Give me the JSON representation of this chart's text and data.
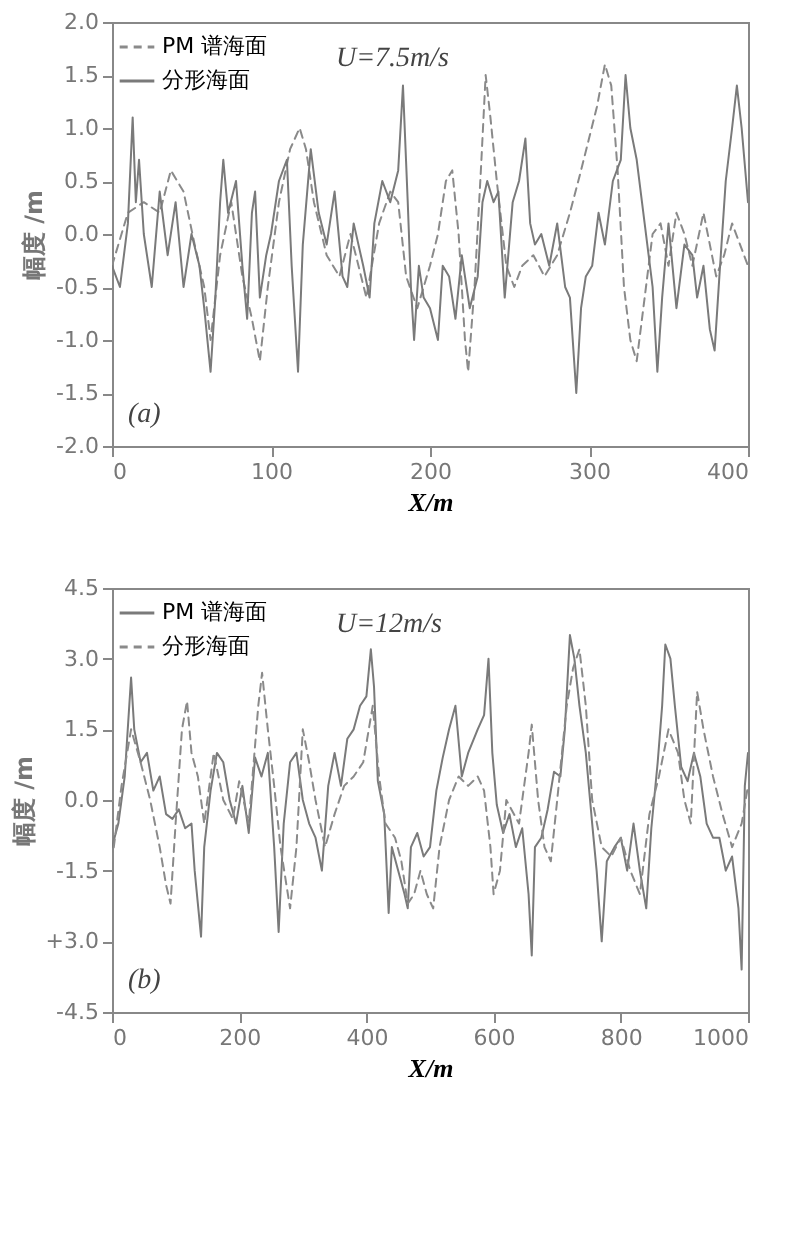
{
  "chart_data": [
    {
      "type": "line",
      "xlabel": "X/m",
      "ylabel": "幅度 /m",
      "annotations": [
        "U=7.5m/s",
        "(a)"
      ],
      "legend": "top left",
      "grid": false,
      "marker": "none",
      "xlim": [
        0,
        400
      ],
      "xticks": [
        0,
        100,
        200,
        300,
        400
      ],
      "ylim": [
        -2,
        2
      ],
      "yticks": [
        {
          "value": -2,
          "label": "-2.0"
        },
        {
          "value": -1.5,
          "label": "-1.5"
        },
        {
          "value": -1,
          "label": "-1.0"
        },
        {
          "value": -0.5,
          "label": "-0.5"
        },
        {
          "value": 0,
          "label": "0.0"
        },
        {
          "value": 0.5,
          "label": "0.5"
        },
        {
          "value": 1,
          "label": "1.0"
        },
        {
          "value": 1.5,
          "label": "1.5"
        },
        {
          "value": 2,
          "label": "2.0"
        }
      ],
      "series": [
        {
          "name": "PM 谱海面",
          "color": "#8a8a8a",
          "line_style": "dashed",
          "x": [
            0,
            10,
            20,
            30,
            37,
            45,
            52,
            58,
            62,
            68,
            75,
            82,
            88,
            93,
            98,
            105,
            112,
            118,
            122,
            127,
            135,
            143,
            150,
            160,
            168,
            175,
            180,
            185,
            192,
            200,
            205,
            210,
            214,
            218,
            222,
            224,
            228,
            232,
            235,
            238,
            242,
            248,
            253,
            258,
            265,
            272,
            280,
            288,
            295,
            300,
            305,
            310,
            314,
            318,
            322,
            326,
            330,
            335,
            340,
            345,
            350,
            355,
            360,
            365,
            372,
            380,
            385,
            390,
            395,
            400
          ],
          "values": [
            -0.3,
            0.2,
            0.3,
            0.2,
            0.6,
            0.4,
            -0.1,
            -0.5,
            -1.0,
            -0.2,
            0.3,
            -0.4,
            -0.8,
            -1.2,
            -0.5,
            0.3,
            0.8,
            1.0,
            0.8,
            0.3,
            -0.2,
            -0.4,
            0.0,
            -0.6,
            0.1,
            0.4,
            0.3,
            -0.4,
            -0.7,
            -0.3,
            0.0,
            0.5,
            0.6,
            0.0,
            -1.0,
            -1.3,
            -0.5,
            0.6,
            1.5,
            1.1,
            0.5,
            -0.3,
            -0.5,
            -0.3,
            -0.2,
            -0.4,
            -0.2,
            0.2,
            0.6,
            0.9,
            1.2,
            1.6,
            1.4,
            0.6,
            -0.5,
            -1.0,
            -1.2,
            -0.6,
            0.0,
            0.1,
            -0.3,
            0.2,
            0.0,
            -0.3,
            0.2,
            -0.4,
            -0.2,
            0.1,
            -0.1,
            -0.3
          ]
        },
        {
          "name": "分形海面",
          "color": "#7a7a7a",
          "line_style": "solid",
          "x": [
            0,
            5,
            10,
            13,
            15,
            17,
            20,
            25,
            30,
            35,
            40,
            45,
            50,
            55,
            58,
            62,
            65,
            68,
            70,
            73,
            78,
            82,
            85,
            88,
            90,
            93,
            97,
            100,
            105,
            110,
            113,
            117,
            120,
            125,
            130,
            135,
            140,
            145,
            148,
            152,
            158,
            162,
            165,
            170,
            175,
            180,
            183,
            186,
            188,
            190,
            193,
            196,
            200,
            205,
            208,
            212,
            216,
            220,
            225,
            230,
            233,
            236,
            240,
            243,
            247,
            252,
            256,
            260,
            263,
            266,
            270,
            275,
            280,
            285,
            288,
            292,
            295,
            298,
            302,
            306,
            310,
            315,
            320,
            323,
            326,
            330,
            335,
            340,
            343,
            346,
            350,
            355,
            360,
            365,
            368,
            372,
            376,
            379,
            382,
            386,
            390,
            393,
            396,
            400
          ],
          "values": [
            -0.3,
            -0.5,
            0.1,
            1.1,
            0.3,
            0.7,
            0.0,
            -0.5,
            0.4,
            -0.2,
            0.3,
            -0.5,
            0.0,
            -0.3,
            -0.7,
            -1.3,
            -0.6,
            0.3,
            0.7,
            0.2,
            0.5,
            -0.3,
            -0.8,
            0.2,
            0.4,
            -0.6,
            -0.2,
            0.0,
            0.5,
            0.7,
            -0.3,
            -1.3,
            -0.1,
            0.8,
            0.2,
            -0.1,
            0.4,
            -0.4,
            -0.5,
            0.1,
            -0.3,
            -0.6,
            0.1,
            0.5,
            0.3,
            0.6,
            1.4,
            0.3,
            -0.5,
            -1.0,
            -0.3,
            -0.6,
            -0.7,
            -1.0,
            -0.3,
            -0.4,
            -0.8,
            -0.2,
            -0.7,
            -0.4,
            0.3,
            0.5,
            0.3,
            0.4,
            -0.6,
            0.3,
            0.5,
            0.9,
            0.1,
            -0.1,
            0.0,
            -0.3,
            0.1,
            -0.5,
            -0.6,
            -1.5,
            -0.7,
            -0.4,
            -0.3,
            0.2,
            -0.1,
            0.5,
            0.7,
            1.5,
            1.0,
            0.7,
            0.1,
            -0.5,
            -1.3,
            -0.6,
            0.1,
            -0.7,
            -0.1,
            -0.2,
            -0.6,
            -0.3,
            -0.9,
            -1.1,
            -0.4,
            0.5,
            1.0,
            1.4,
            1.0,
            0.3
          ]
        }
      ]
    },
    {
      "type": "line",
      "xlabel": "X/m",
      "ylabel": "幅度 /m",
      "annotations": [
        "U=12m/s",
        "(b)"
      ],
      "legend": "top left",
      "grid": false,
      "marker": "none",
      "xlim": [
        0,
        1000
      ],
      "xticks": [
        0,
        200,
        400,
        600,
        800,
        {
          "value": 1000,
          "label": "1000"
        }
      ],
      "ylim": [
        -4.5,
        4.5
      ],
      "yticks": [
        {
          "value": -4.5,
          "label": "-4.5"
        },
        {
          "value": -3,
          "label": "+3.0"
        },
        {
          "value": -1.5,
          "label": "-1.5"
        },
        {
          "value": 0,
          "label": "0.0"
        },
        {
          "value": 1.5,
          "label": "1.5"
        },
        {
          "value": 3,
          "label": "3.0"
        },
        {
          "value": 4.5,
          "label": "4.5"
        }
      ],
      "series": [
        {
          "name": "PM 谱海面",
          "color": "#7a7a7a",
          "line_style": "solid",
          "x": [
            0,
            10,
            20,
            30,
            35,
            45,
            55,
            65,
            75,
            85,
            95,
            105,
            115,
            125,
            130,
            135,
            140,
            145,
            155,
            165,
            175,
            185,
            195,
            205,
            215,
            225,
            235,
            245,
            255,
            262,
            270,
            280,
            290,
            300,
            310,
            320,
            330,
            340,
            350,
            360,
            370,
            380,
            390,
            400,
            407,
            412,
            418,
            428,
            435,
            440,
            450,
            460,
            465,
            470,
            480,
            490,
            500,
            510,
            520,
            530,
            540,
            550,
            560,
            575,
            585,
            592,
            598,
            605,
            615,
            625,
            635,
            645,
            655,
            660,
            665,
            675,
            685,
            695,
            705,
            712,
            720,
            727,
            735,
            745,
            755,
            762,
            770,
            778,
            790,
            800,
            810,
            820,
            830,
            840,
            848,
            858,
            865,
            870,
            878,
            885,
            895,
            905,
            915,
            925,
            935,
            945,
            955,
            965,
            975,
            985,
            990,
            995,
            1000
          ],
          "values": [
            -1.0,
            -0.5,
            0.5,
            2.6,
            1.5,
            0.8,
            1.0,
            0.2,
            0.5,
            -0.3,
            -0.4,
            -0.2,
            -0.6,
            -0.5,
            -1.5,
            -2.2,
            -2.9,
            -1.0,
            0.2,
            1.0,
            0.8,
            0.0,
            -0.5,
            0.3,
            -0.7,
            0.9,
            0.5,
            1.0,
            -1.0,
            -2.8,
            -0.5,
            0.8,
            1.0,
            0.0,
            -0.5,
            -0.8,
            -1.5,
            0.3,
            1.0,
            0.3,
            1.3,
            1.5,
            2.0,
            2.2,
            3.2,
            2.4,
            0.4,
            -0.3,
            -2.4,
            -1.0,
            -1.5,
            -2.0,
            -2.3,
            -1.0,
            -0.7,
            -1.2,
            -1.0,
            0.2,
            0.9,
            1.5,
            2.0,
            0.5,
            1.0,
            1.5,
            1.8,
            3.0,
            1.0,
            -0.1,
            -0.7,
            -0.3,
            -1.0,
            -0.6,
            -2.0,
            -3.3,
            -1.0,
            -0.8,
            -0.2,
            0.6,
            0.5,
            1.5,
            3.5,
            3.0,
            2.0,
            1.0,
            -0.5,
            -1.5,
            -3.0,
            -1.3,
            -1.0,
            -0.8,
            -1.5,
            -0.5,
            -1.5,
            -2.3,
            -0.6,
            0.8,
            2.0,
            3.3,
            3.0,
            2.0,
            0.7,
            0.4,
            1.0,
            0.5,
            -0.5,
            -0.8,
            -0.8,
            -1.5,
            -1.2,
            -2.3,
            -3.6,
            0.3,
            1.0
          ]
        },
        {
          "name": "分形海面",
          "color": "#8a8a8a",
          "line_style": "dashed",
          "x": [
            0,
            15,
            30,
            45,
            60,
            75,
            85,
            92,
            100,
            110,
            118,
            125,
            135,
            145,
            160,
            175,
            190,
            200,
            215,
            230,
            236,
            245,
            255,
            265,
            280,
            290,
            300,
            310,
            320,
            335,
            350,
            365,
            380,
            395,
            410,
            420,
            430,
            445,
            455,
            465,
            475,
            485,
            495,
            505,
            515,
            530,
            545,
            560,
            575,
            585,
            595,
            600,
            610,
            620,
            640,
            655,
            660,
            670,
            680,
            690,
            700,
            715,
            725,
            735,
            745,
            755,
            770,
            785,
            800,
            815,
            830,
            845,
            860,
            875,
            890,
            900,
            910,
            920,
            930,
            945,
            960,
            975,
            990,
            1000
          ],
          "values": [
            -1.3,
            0.3,
            1.5,
            0.8,
            0.0,
            -1.0,
            -1.8,
            -2.2,
            -0.5,
            1.5,
            2.1,
            1.0,
            0.5,
            -0.5,
            1.0,
            0.0,
            -0.4,
            0.4,
            -0.5,
            2.0,
            2.7,
            1.5,
            0.3,
            -1.0,
            -2.3,
            -1.0,
            1.5,
            0.8,
            0.0,
            -1.0,
            -0.3,
            0.3,
            0.5,
            0.8,
            2.0,
            0.5,
            -0.5,
            -0.8,
            -1.3,
            -2.2,
            -2.0,
            -1.5,
            -2.0,
            -2.3,
            -1.0,
            0.0,
            0.5,
            0.3,
            0.5,
            0.2,
            -1.0,
            -2.0,
            -1.5,
            0.0,
            -0.5,
            1.0,
            1.6,
            0.0,
            -1.0,
            -1.3,
            0.0,
            2.0,
            2.8,
            3.2,
            2.0,
            0.0,
            -1.0,
            -1.2,
            -0.8,
            -1.5,
            -2.0,
            -0.3,
            0.5,
            1.5,
            1.0,
            0.0,
            -0.5,
            2.3,
            1.5,
            0.5,
            -0.3,
            -1.0,
            -0.5,
            0.3
          ]
        }
      ]
    }
  ]
}
